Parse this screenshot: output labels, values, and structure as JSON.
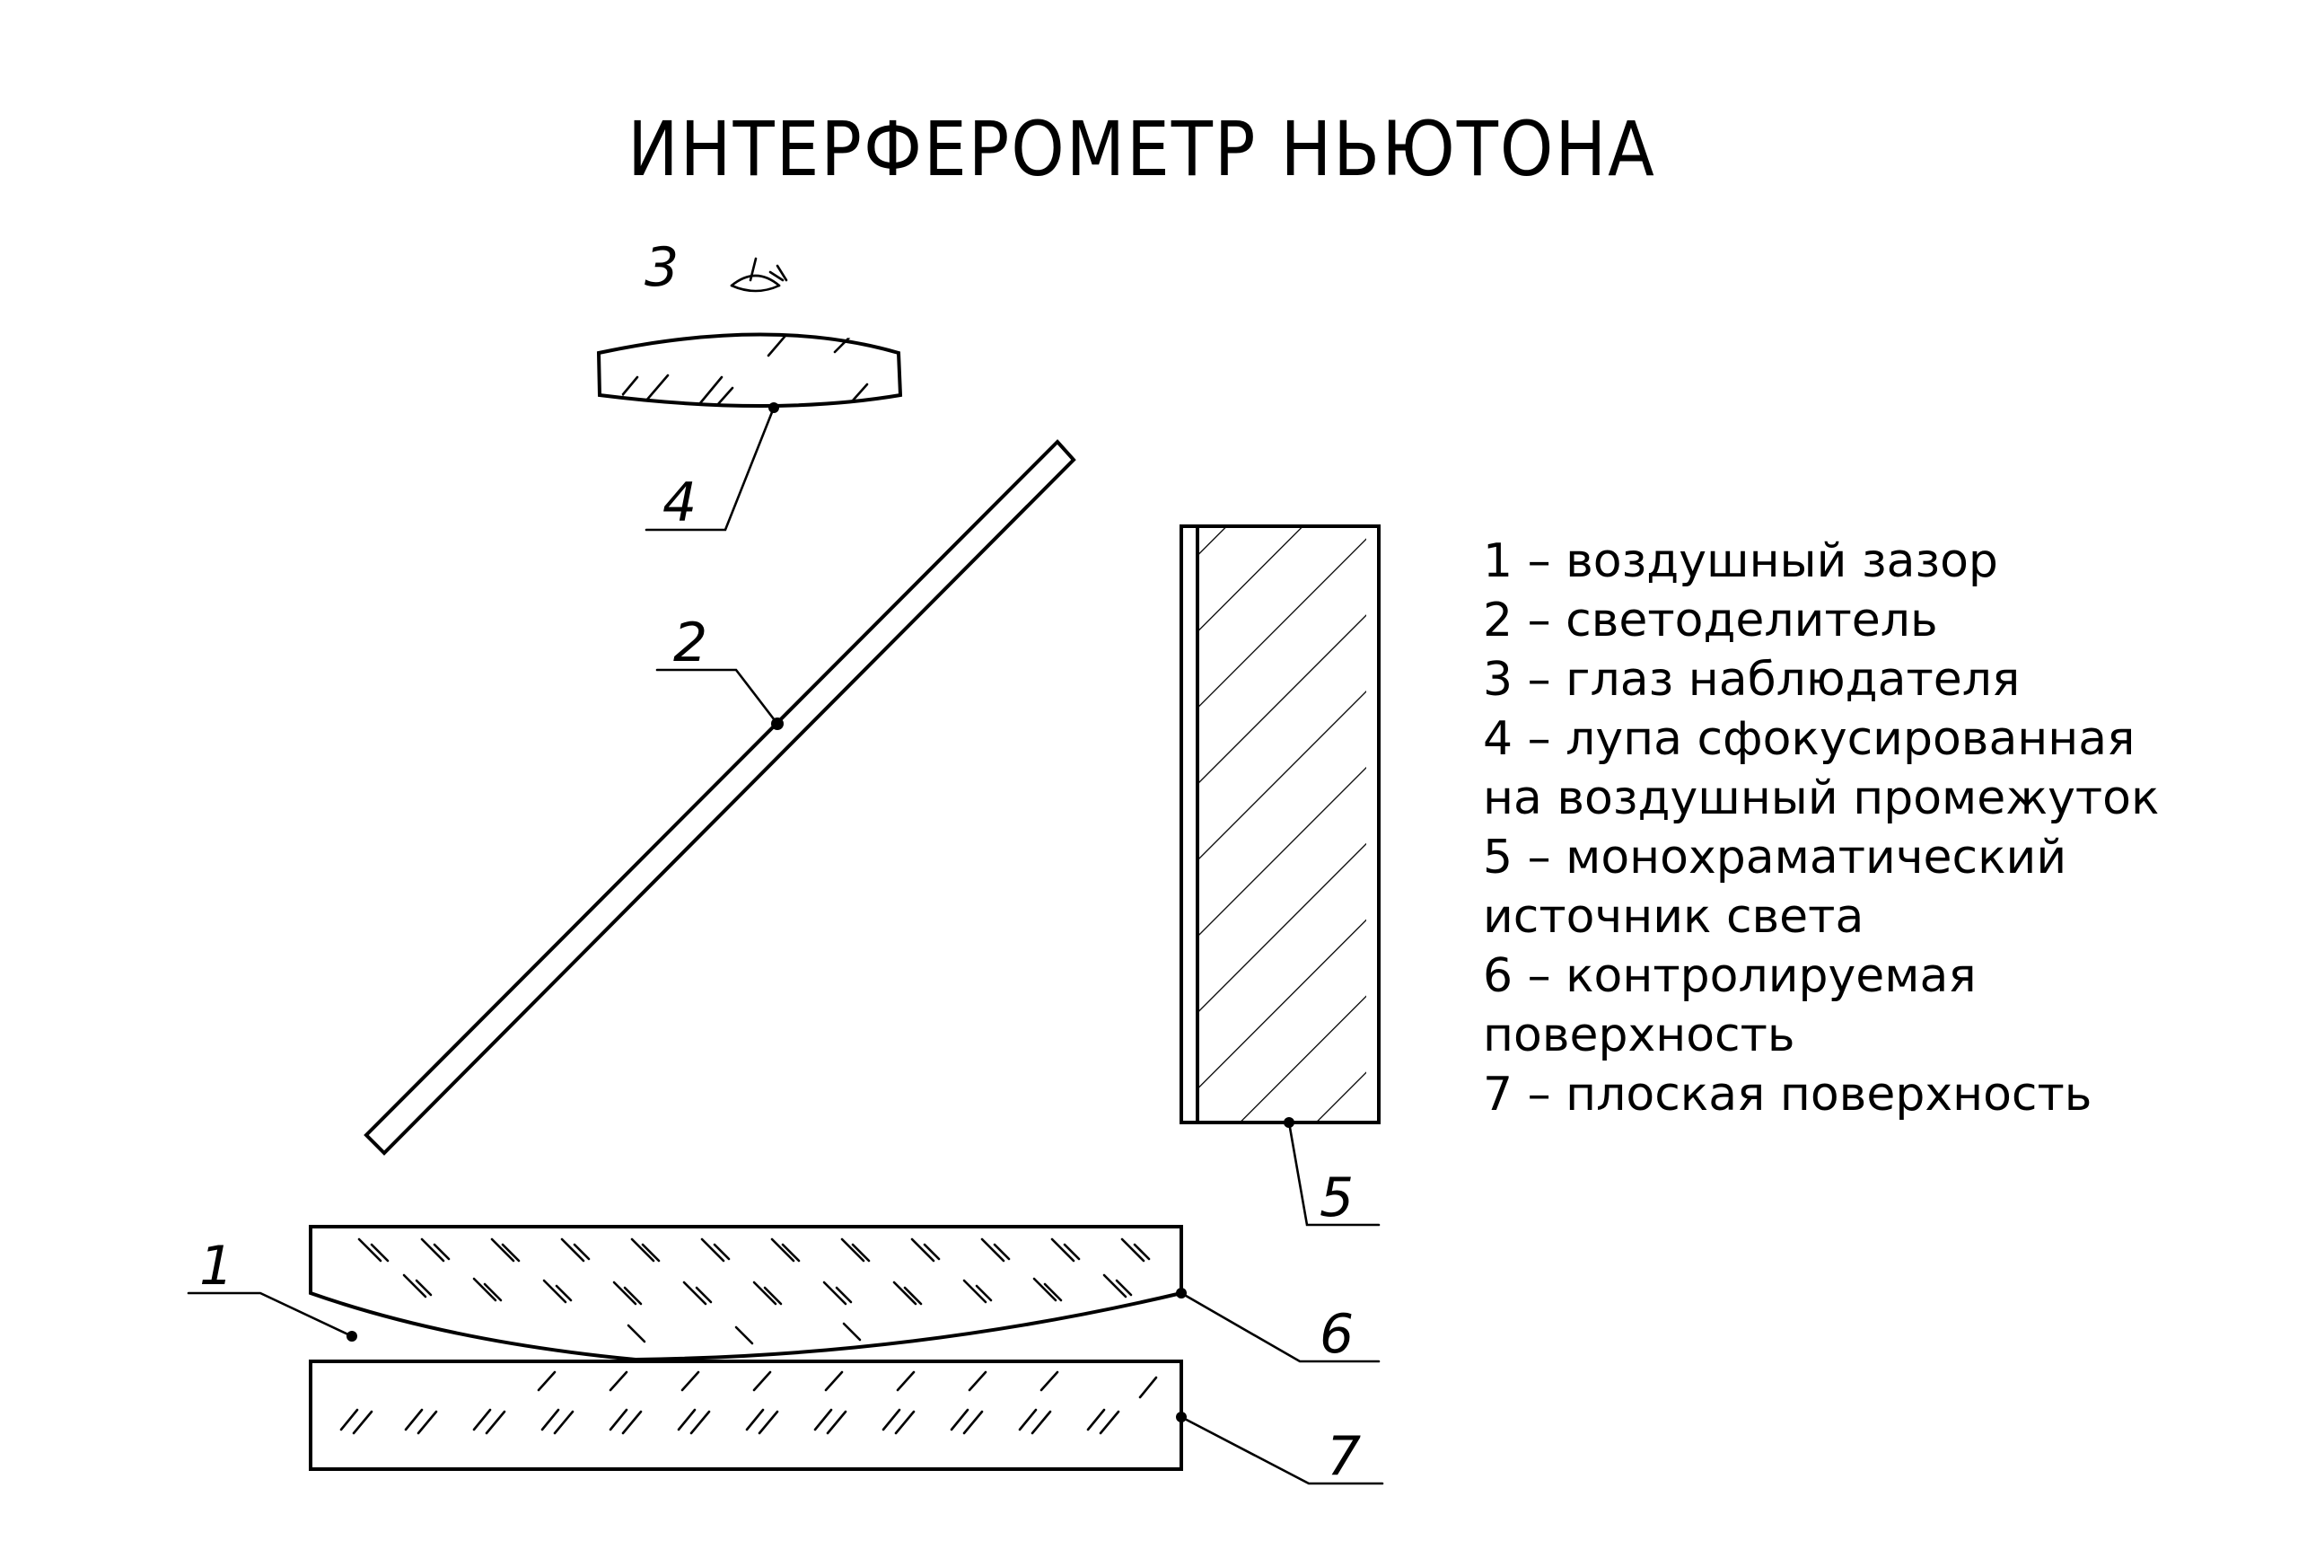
{
  "title": "ИНТЕРФЕРОМЕТР НЬЮТОНА",
  "callouts": {
    "c1": "1",
    "c2": "2",
    "c3": "3",
    "c4": "4",
    "c5": "5",
    "c6": "6",
    "c7": "7"
  },
  "legend": [
    "1 – воздушный зазор",
    "2 – светоделитель",
    "3 – глаз наблюдателя",
    "4 – лупа сфокусированная",
    "на воздушный промежуток",
    "5 – монохраматический",
    "источник света",
    "6 – контролируемая",
    "поверхность",
    "7 – плоская поверхность"
  ],
  "icons": {
    "eye": "eye-icon"
  }
}
